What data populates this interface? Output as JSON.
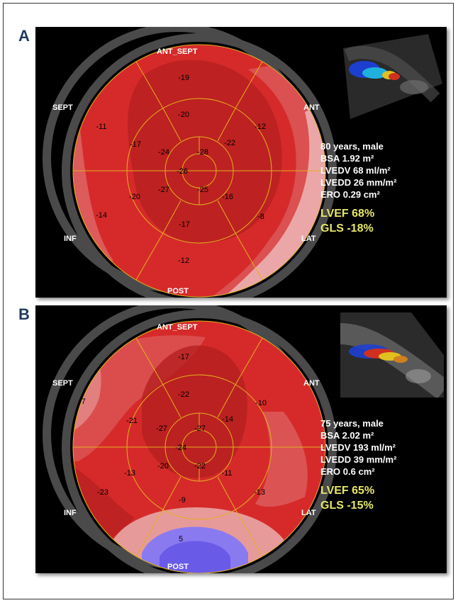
{
  "panels": [
    {
      "letter": "A",
      "labels": {
        "ant_sept": "ANT_SEPT",
        "sept": "SEPT",
        "ant": "ANT",
        "inf": "INF",
        "lat": "LAT",
        "post": "POST"
      },
      "segments": {
        "basal": [
          "-19",
          "-12",
          "-8",
          "-12",
          "-14",
          "-11"
        ],
        "mid": [
          "-20",
          "-22",
          "-16",
          "-17",
          "-20",
          "-17"
        ],
        "apical": [
          "-24",
          "-28",
          "-25",
          "-27"
        ],
        "apex": "-26"
      },
      "info": {
        "age_sex": "80 years, male",
        "bsa": "BSA 1.92 m²",
        "lvedv": "LVEDV 68 ml/m²",
        "lvedd": "LVEDD 26 mm/m²",
        "ero": "ERO 0.29 cm²",
        "lvef": "LVEF 68%",
        "gls": "GLS -18%"
      }
    },
    {
      "letter": "B",
      "labels": {
        "ant_sept": "ANT_SEPT",
        "sept": "SEPT",
        "ant": "ANT",
        "inf": "INF",
        "lat": "LAT",
        "post": "POST"
      },
      "segments": {
        "basal": [
          "-17",
          "-10",
          "-13",
          "5",
          "-23",
          "-7"
        ],
        "mid": [
          "-22",
          "-14",
          "-11",
          "-9",
          "-13",
          "-21"
        ],
        "apical": [
          "-27",
          "-27",
          "-22",
          "-20"
        ],
        "apex": "-24"
      },
      "info": {
        "age_sex": "75 years, male",
        "bsa": "BSA  2.02 m²",
        "lvedv": "LVEDV 193 ml/m²",
        "lvedd": "LVEDD 39 mm/m²",
        "ero": "ERO 0.6 cm²",
        "lvef": "LVEF  65%",
        "gls": "GLS -15%"
      }
    }
  ],
  "colors": {
    "strain_red": "#d62a2a",
    "strain_dark": "#b51f1f",
    "strain_pale": "#e8a0a0",
    "positive_blue": "#8a7af0",
    "highlight": "#e6e66a",
    "grid_line": "#e0b020"
  }
}
